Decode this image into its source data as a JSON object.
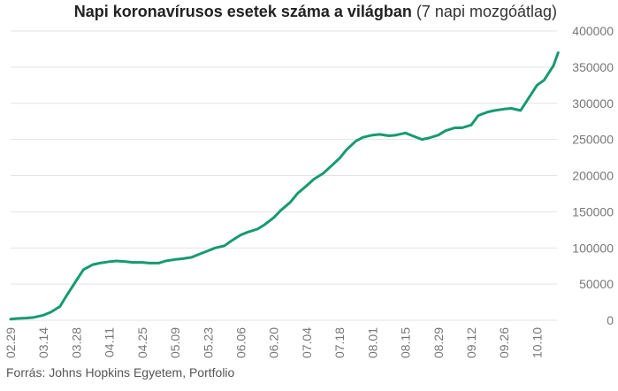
{
  "title_bold": "Napi koronavírusos esetek száma a világban",
  "title_rest": " (7 napi mozgóátlag)",
  "source": "Forrás: Johns Hopkins Egyetem, Portfolio",
  "colors": {
    "line": "#169a72",
    "grid": "#e3e3e3",
    "tick_text": "#777777"
  },
  "chart_data": {
    "type": "line",
    "title": "Napi koronavírusos esetek száma a világban (7 napi mozgóátlag)",
    "xlabel": "",
    "ylabel": "",
    "ylim": [
      0,
      400000
    ],
    "x_range": [
      "2020-02-29",
      "2020-10-20"
    ],
    "y_ticks": [
      0,
      50000,
      100000,
      150000,
      200000,
      250000,
      300000,
      350000,
      400000
    ],
    "y_tick_labels": [
      "0",
      "50000",
      "100000",
      "150000",
      "200000",
      "250000",
      "300000",
      "350000",
      "400000"
    ],
    "x_ticks": [
      "2020-02-29",
      "2020-03-14",
      "2020-03-28",
      "2020-04-11",
      "2020-04-25",
      "2020-05-09",
      "2020-05-23",
      "2020-06-06",
      "2020-06-20",
      "2020-07-04",
      "2020-07-18",
      "2020-08-01",
      "2020-08-15",
      "2020-08-29",
      "2020-09-12",
      "2020-09-26",
      "2020-10-10"
    ],
    "x_tick_labels": [
      "02.29",
      "03.14",
      "03.28",
      "04.11",
      "04.25",
      "05.09",
      "05.23",
      "06.06",
      "06.20",
      "07.04",
      "07.18",
      "08.01",
      "08.15",
      "08.29",
      "09.12",
      "09.26",
      "10.10"
    ],
    "grid": true,
    "legend": "none",
    "x": [
      "2020-02-29",
      "2020-03-03",
      "2020-03-07",
      "2020-03-10",
      "2020-03-14",
      "2020-03-17",
      "2020-03-21",
      "2020-03-24",
      "2020-03-28",
      "2020-03-31",
      "2020-04-04",
      "2020-04-07",
      "2020-04-11",
      "2020-04-14",
      "2020-04-18",
      "2020-04-21",
      "2020-04-25",
      "2020-04-28",
      "2020-05-02",
      "2020-05-05",
      "2020-05-09",
      "2020-05-12",
      "2020-05-16",
      "2020-05-19",
      "2020-05-23",
      "2020-05-26",
      "2020-05-30",
      "2020-06-02",
      "2020-06-06",
      "2020-06-09",
      "2020-06-13",
      "2020-06-16",
      "2020-06-20",
      "2020-06-23",
      "2020-06-27",
      "2020-06-30",
      "2020-07-04",
      "2020-07-07",
      "2020-07-11",
      "2020-07-14",
      "2020-07-18",
      "2020-07-21",
      "2020-07-25",
      "2020-07-28",
      "2020-08-01",
      "2020-08-04",
      "2020-08-08",
      "2020-08-11",
      "2020-08-15",
      "2020-08-18",
      "2020-08-22",
      "2020-08-25",
      "2020-08-29",
      "2020-09-01",
      "2020-09-05",
      "2020-09-08",
      "2020-09-12",
      "2020-09-15",
      "2020-09-19",
      "2020-09-22",
      "2020-09-26",
      "2020-09-29",
      "2020-10-03",
      "2020-10-06",
      "2020-10-10",
      "2020-10-13",
      "2020-10-17",
      "2020-10-19"
    ],
    "series": [
      {
        "values": [
          1500,
          2500,
          3000,
          4000,
          7000,
          11000,
          19000,
          35000,
          55000,
          70000,
          77000,
          79000,
          81000,
          82000,
          81000,
          80000,
          80000,
          79000,
          79000,
          82000,
          84000,
          85000,
          87000,
          91000,
          96000,
          100000,
          103000,
          110000,
          118000,
          122000,
          126000,
          132000,
          142000,
          152000,
          163000,
          175000,
          186000,
          195000,
          203000,
          212000,
          224000,
          236000,
          248000,
          253000,
          256000,
          257000,
          255000,
          256000,
          259000,
          255000,
          250000,
          252000,
          256000,
          262000,
          266000,
          266000,
          270000,
          283000,
          288000,
          290000,
          292000,
          293000,
          290000,
          305000,
          325000,
          332000,
          352000,
          370000
        ]
      }
    ]
  }
}
